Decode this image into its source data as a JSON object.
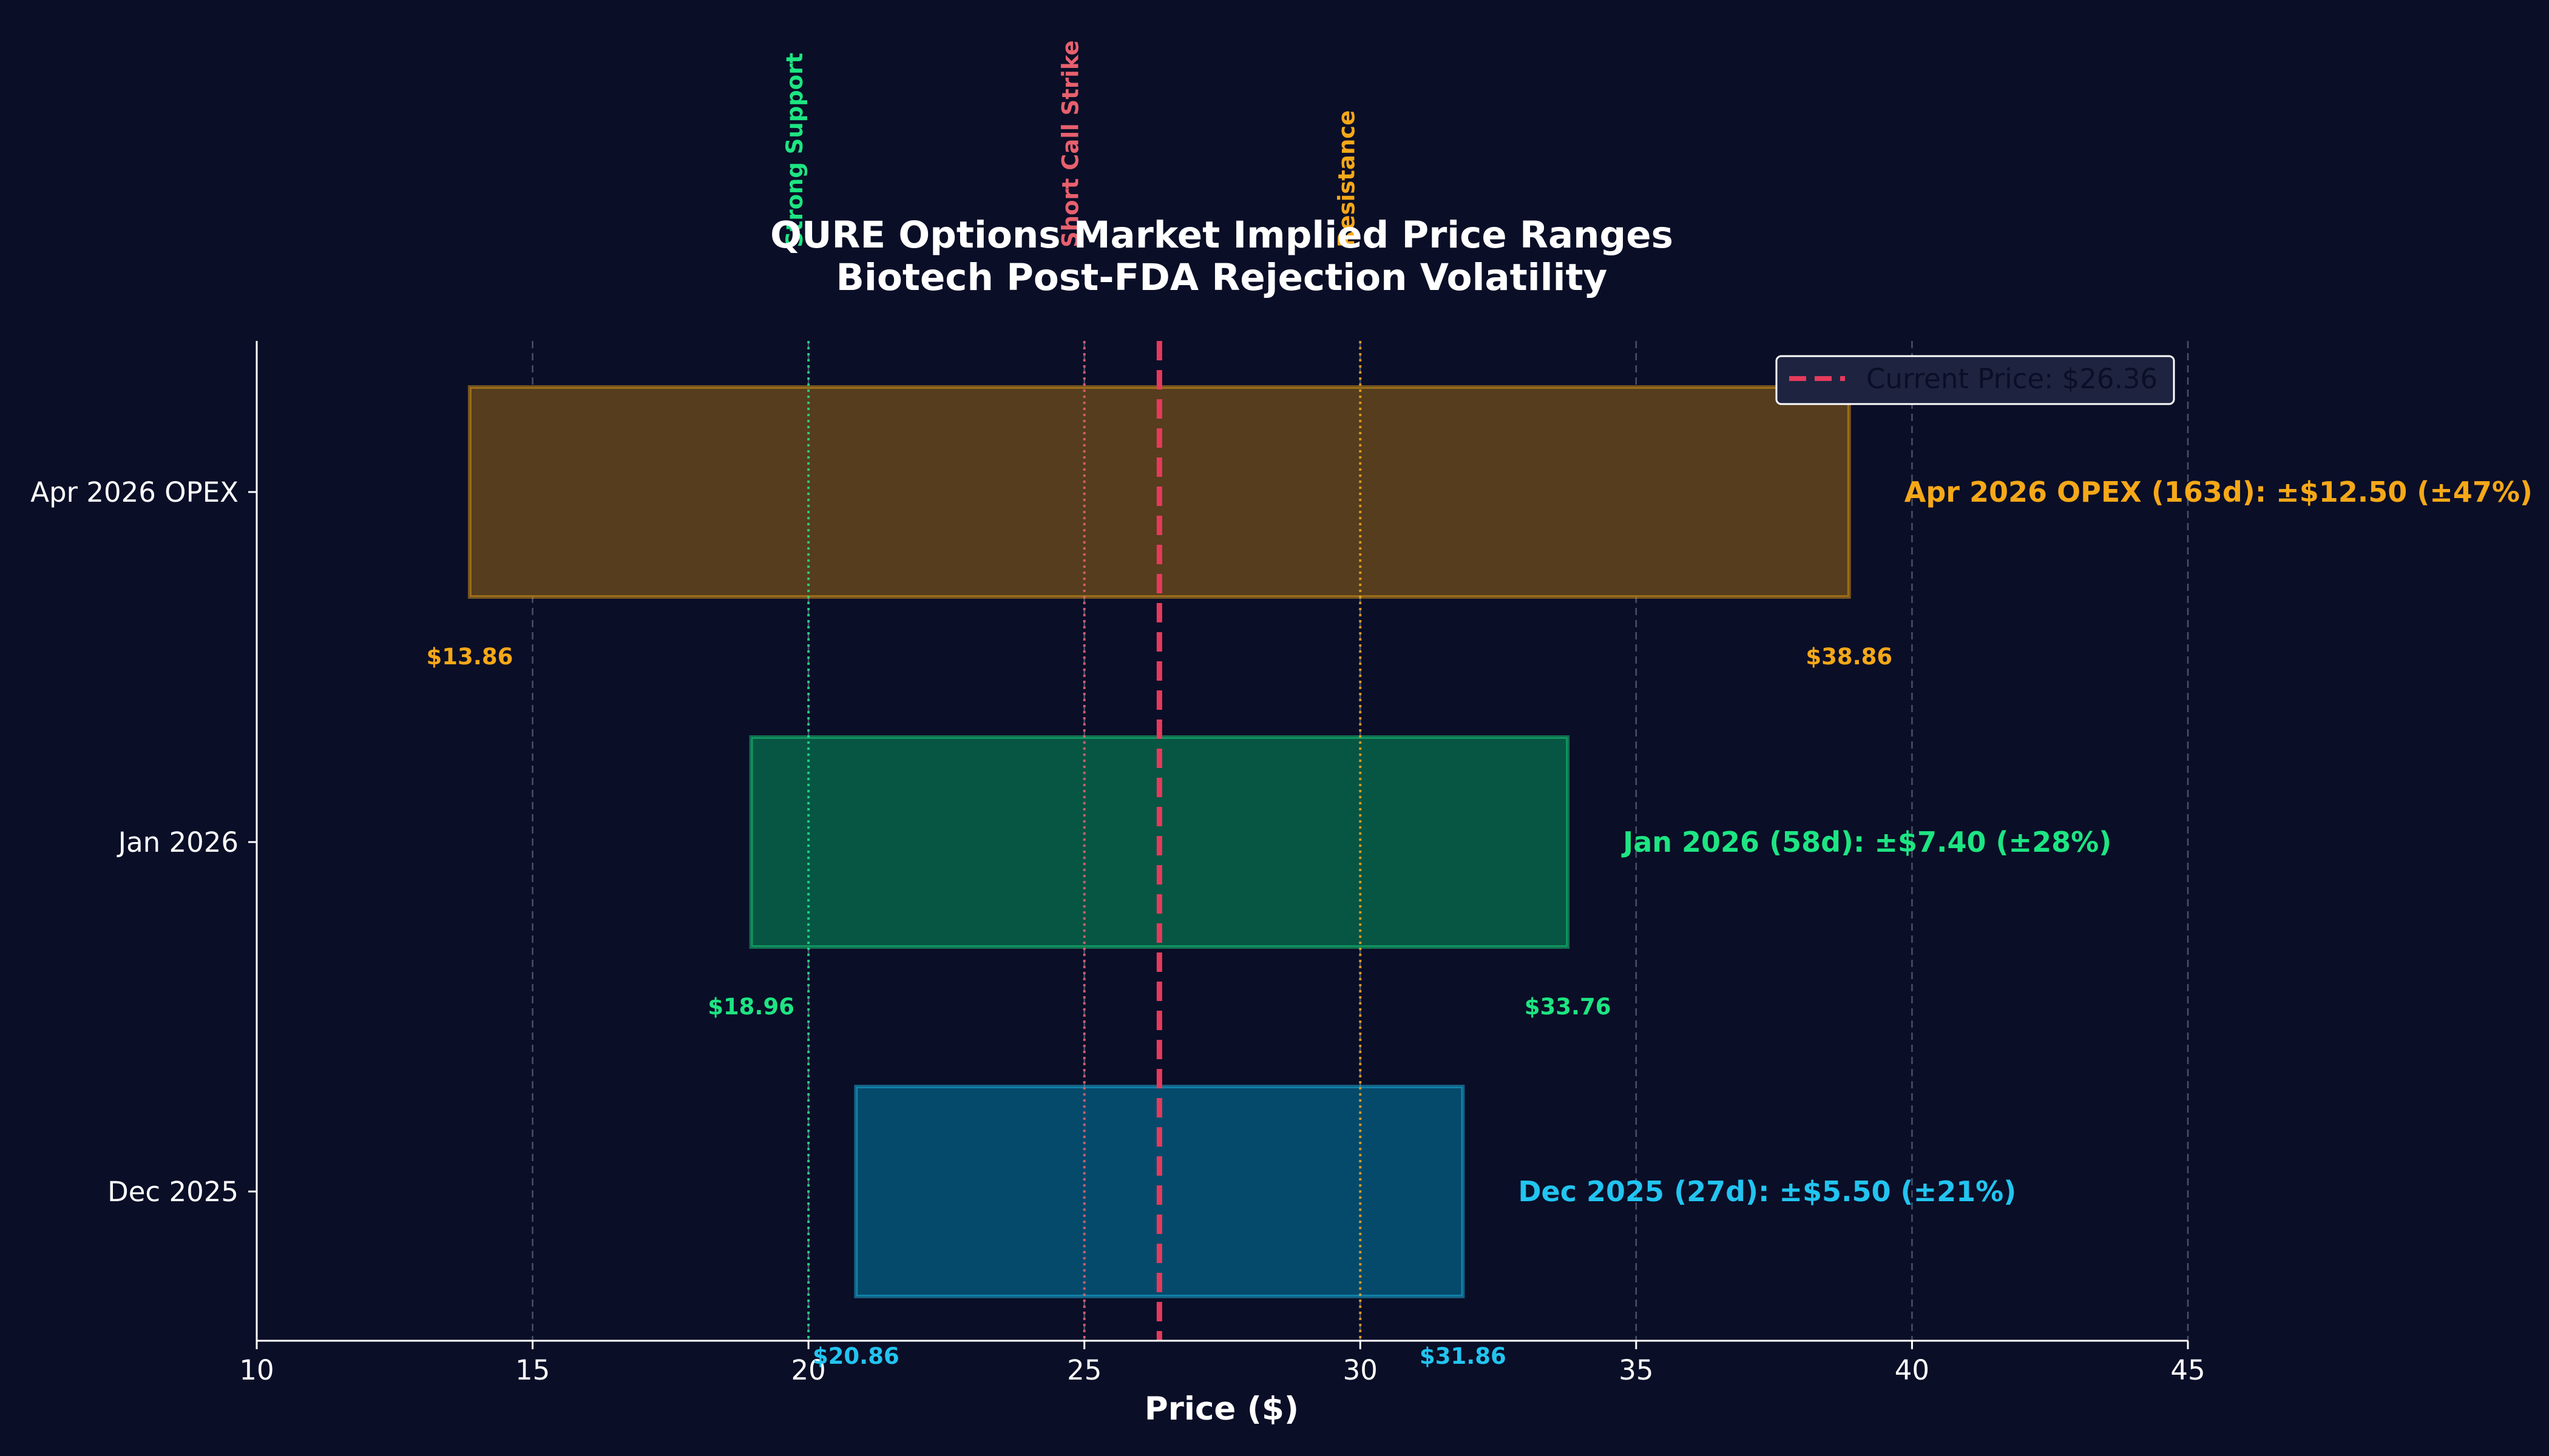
{
  "chart_data": {
    "type": "bar",
    "orientation": "horizontal",
    "title": "QURE Options Market Implied Price Ranges",
    "subtitle": "Biotech Post-FDA Rejection Volatility",
    "xlabel": "Price ($)",
    "ylabel": "",
    "xlim": [
      10,
      45
    ],
    "xticks": [
      "10",
      "15",
      "20",
      "25",
      "30",
      "35",
      "40",
      "45"
    ],
    "grid": "vertical dashed",
    "legend": {
      "placement": "top-right",
      "label": "Current Price: $26.36"
    },
    "current_price": 26.36,
    "current_price_color": "#e63a5c",
    "ranges": [
      {
        "category": "Dec 2025",
        "low": 20.86,
        "high": 31.86,
        "low_label": "$20.86",
        "high_label": "$31.86",
        "annotation": "Dec 2025 (27d): ±$5.50 (±21%)",
        "color": "#22c4f0",
        "fill": "#054a6b"
      },
      {
        "category": "Jan 2026",
        "low": 18.96,
        "high": 33.76,
        "low_label": "$18.96",
        "high_label": "$33.76",
        "annotation": "Jan 2026 (58d): ±$7.40 (±28%)",
        "color": "#1de582",
        "fill": "#075543"
      },
      {
        "category": "Apr 2026 OPEX",
        "low": 13.86,
        "high": 38.86,
        "low_label": "$13.86",
        "high_label": "$38.86",
        "annotation": "Apr 2026 OPEX (163d): ±$12.50 (±47%)",
        "color": "#f5a818",
        "fill": "#553d1d"
      }
    ],
    "reference_lines": [
      {
        "x": 20,
        "label": "Strong Support",
        "color": "#1de582"
      },
      {
        "x": 25,
        "label": "Short Call Strike",
        "color": "#e8606e"
      },
      {
        "x": 30,
        "label": "Resistance",
        "color": "#f5a818"
      }
    ]
  }
}
